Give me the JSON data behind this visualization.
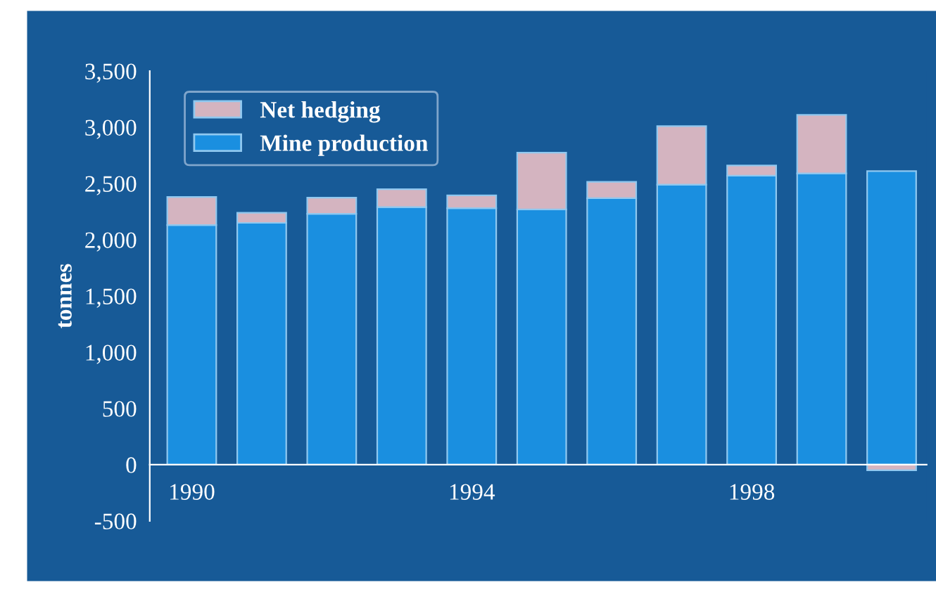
{
  "chart_data": {
    "type": "bar",
    "stacked": true,
    "ylabel": "tonnes",
    "categories": [
      "1990",
      null,
      null,
      null,
      "1994",
      null,
      null,
      null,
      "1998",
      null,
      null
    ],
    "series": [
      {
        "name": "Mine production",
        "color": "#1a8fe0",
        "values": [
          2130,
          2150,
          2230,
          2290,
          2280,
          2270,
          2370,
          2490,
          2570,
          2590,
          2610
        ]
      },
      {
        "name": "Net hedging",
        "color": "#d4b4c0",
        "values": [
          250,
          90,
          145,
          160,
          115,
          505,
          145,
          520,
          90,
          520,
          -50
        ]
      }
    ],
    "ylim": [
      -500,
      3500
    ],
    "yticks": [
      {
        "value": -500,
        "label": "-500"
      },
      0,
      500,
      {
        "value": 1000,
        "label": "1,000"
      },
      {
        "value": 1500,
        "label": "1,500"
      },
      {
        "value": 2000,
        "label": "2,000"
      },
      {
        "value": 2500,
        "label": "2,500"
      },
      {
        "value": 3000,
        "label": "3,000"
      },
      {
        "value": 3500,
        "label": "3,500"
      }
    ],
    "legend": "top left",
    "grid": false
  }
}
